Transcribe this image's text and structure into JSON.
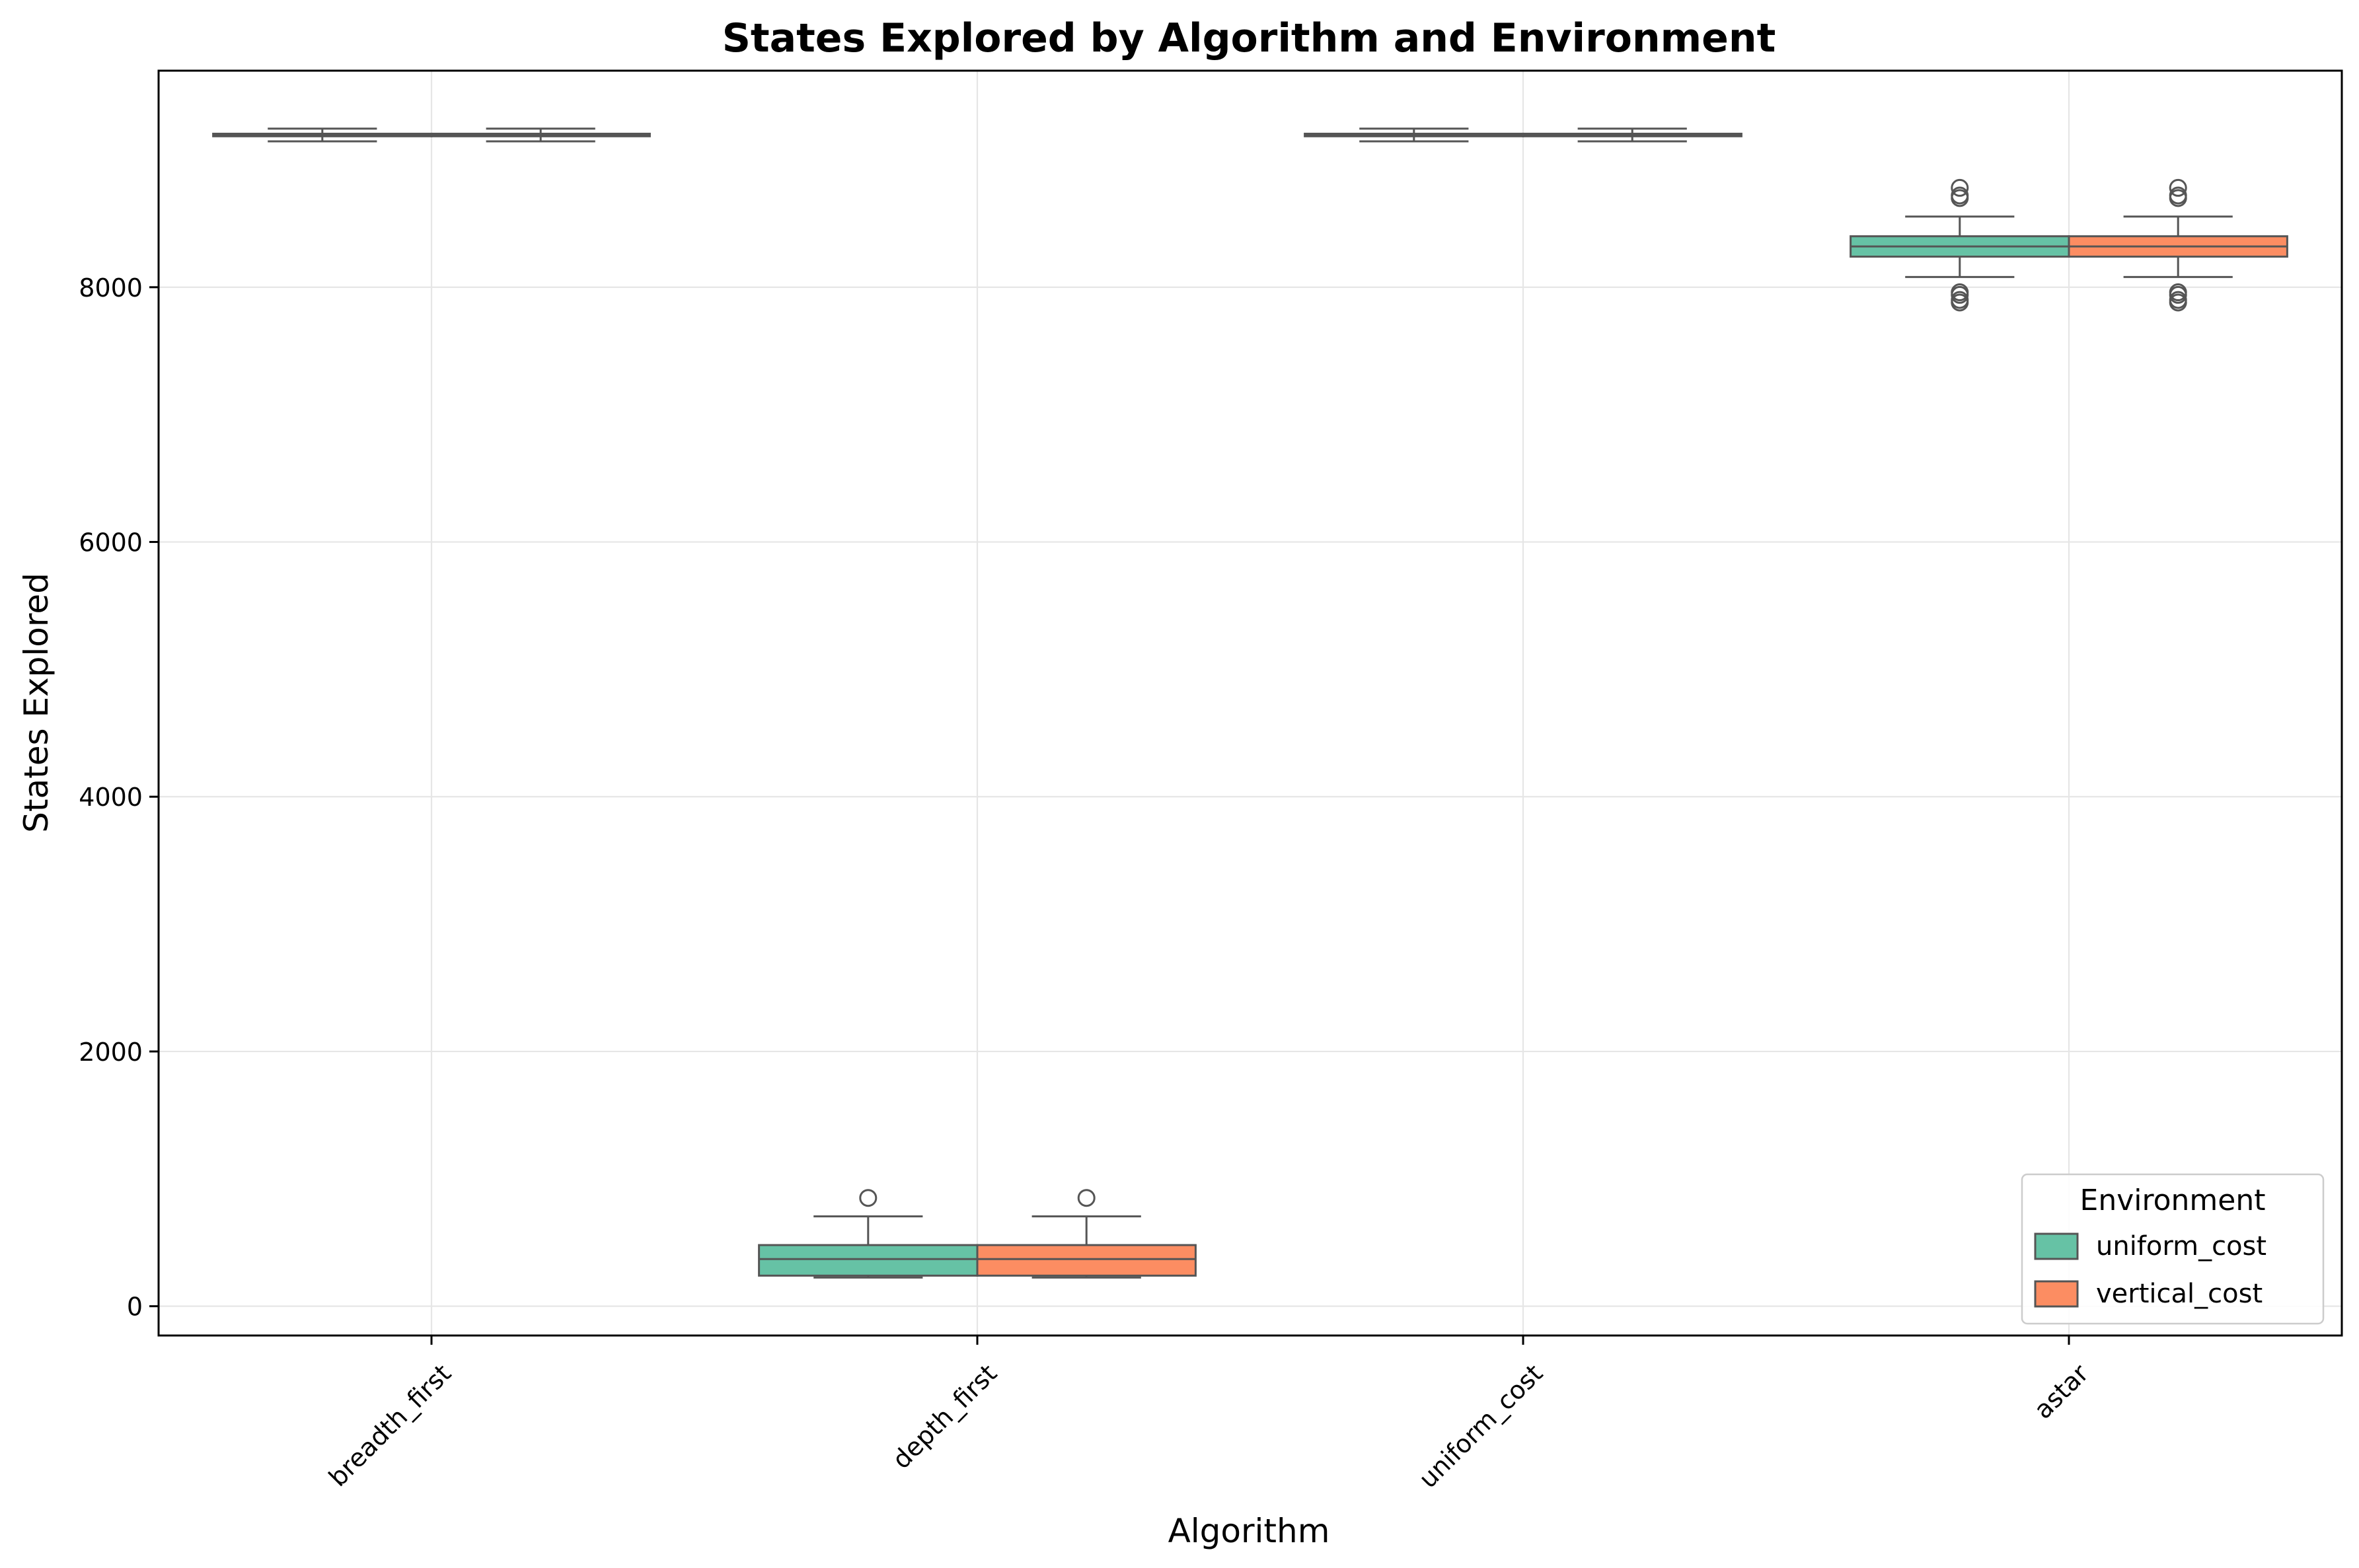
{
  "chart_data": {
    "type": "box",
    "title": "States Explored by Algorithm and Environment",
    "xlabel": "Algorithm",
    "ylabel": "States Explored",
    "categories": [
      "breadth_first",
      "depth_first",
      "uniform_cost",
      "astar"
    ],
    "ylim": [
      -230,
      9700
    ],
    "yticks": [
      0,
      2000,
      4000,
      6000,
      8000
    ],
    "grid": true,
    "legend": {
      "title": "Environment",
      "placement": "lower-right"
    },
    "series": [
      {
        "name": "uniform_cost",
        "color": "#66c2a5",
        "boxes": [
          {
            "whisker_low": 9145,
            "q1": 9185,
            "median": 9195,
            "q3": 9205,
            "whisker_high": 9245,
            "outliers": []
          },
          {
            "whisker_low": 225,
            "q1": 240,
            "median": 370,
            "q3": 480,
            "whisker_high": 705,
            "outliers": [
              850
            ]
          },
          {
            "whisker_low": 9145,
            "q1": 9185,
            "median": 9195,
            "q3": 9205,
            "whisker_high": 9245,
            "outliers": []
          },
          {
            "whisker_low": 8080,
            "q1": 8240,
            "median": 8320,
            "q3": 8400,
            "whisker_high": 8555,
            "outliers": [
              7880,
              7900,
              7940,
              7960,
              8700,
              8720,
              8780
            ]
          }
        ]
      },
      {
        "name": "vertical_cost",
        "color": "#fc8d62",
        "boxes": [
          {
            "whisker_low": 9145,
            "q1": 9185,
            "median": 9195,
            "q3": 9205,
            "whisker_high": 9245,
            "outliers": []
          },
          {
            "whisker_low": 225,
            "q1": 240,
            "median": 370,
            "q3": 480,
            "whisker_high": 705,
            "outliers": [
              850
            ]
          },
          {
            "whisker_low": 9145,
            "q1": 9185,
            "median": 9195,
            "q3": 9205,
            "whisker_high": 9245,
            "outliers": []
          },
          {
            "whisker_low": 8080,
            "q1": 8240,
            "median": 8320,
            "q3": 8400,
            "whisker_high": 8555,
            "outliers": [
              7880,
              7900,
              7940,
              7960,
              8700,
              8720,
              8780
            ]
          }
        ]
      }
    ]
  }
}
